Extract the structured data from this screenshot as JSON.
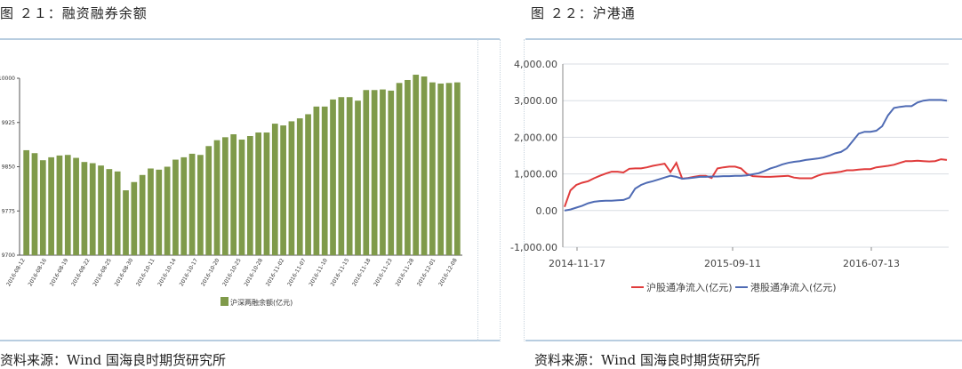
{
  "left_figure": {
    "title": "图 ２１：融资融券余额",
    "source": "资料来源：Wind 国海良时期货研究所"
  },
  "right_figure": {
    "title": "图 ２２：沪港通",
    "source": "资料来源：Wind 国海良时期货研究所"
  },
  "chart_data": [
    {
      "type": "bar",
      "title": "",
      "xlabel": "",
      "ylabel": "",
      "yticks": [
        "9700",
        "9775",
        "9850",
        "9925",
        "10000"
      ],
      "ylim": [
        9700,
        10000
      ],
      "color": "#7f9a4a",
      "legend": "沪深两融余额(亿元)",
      "legend_position": "bottom",
      "grid": false,
      "xtick_labels": [
        "2016-08-12",
        "2016-08-16",
        "2016-08-19",
        "2016-08-22",
        "2016-08-25",
        "2016-08-30",
        "2016-10-11",
        "2016-10-14",
        "2016-10-17",
        "2016-10-20",
        "2016-10-25",
        "2016-10-28",
        "2016-11-02",
        "2016-11-07",
        "2016-11-10",
        "2016-11-15",
        "2016-11-18",
        "2016-11-23",
        "2016-11-28",
        "2016-12-01",
        "2016-12-08"
      ],
      "values": [
        9878,
        9873,
        9861,
        9866,
        9869,
        9870,
        9865,
        9858,
        9856,
        9852,
        9846,
        9842,
        9810,
        9824,
        9836,
        9847,
        9845,
        9850,
        9862,
        9866,
        9872,
        9870,
        9885,
        9895,
        9900,
        9905,
        9896,
        9902,
        9908,
        9908,
        9923,
        9920,
        9927,
        9932,
        9939,
        9952,
        9952,
        9964,
        9968,
        9968,
        9962,
        9980,
        9980,
        9981,
        9979,
        9992,
        9997,
        10006,
        10003,
        9993,
        9991,
        9992,
        9993
      ]
    },
    {
      "type": "line",
      "title": "",
      "xlabel": "",
      "ylabel": "",
      "ylim": [
        -1000,
        4000
      ],
      "yticks": [
        "4,000.00",
        "3,000.00",
        "2,000.00",
        "1,000.00",
        "0.00",
        "-1,000.00"
      ],
      "xtick_labels": [
        "2014-11-17",
        "2015-09-11",
        "2016-07-13"
      ],
      "grid": true,
      "legend_position": "bottom",
      "series": [
        {
          "name": "沪股通净流入(亿元)",
          "color": "#e03c3c",
          "values": [
            100,
            550,
            700,
            760,
            800,
            880,
            950,
            1010,
            1060,
            1060,
            1040,
            1140,
            1150,
            1150,
            1180,
            1220,
            1250,
            1280,
            1050,
            1300,
            870,
            890,
            920,
            950,
            950,
            890,
            1150,
            1180,
            1200,
            1200,
            1150,
            1000,
            940,
            930,
            920,
            920,
            930,
            940,
            950,
            900,
            880,
            880,
            880,
            950,
            1000,
            1020,
            1040,
            1060,
            1100,
            1100,
            1120,
            1130,
            1130,
            1180,
            1200,
            1220,
            1250,
            1300,
            1350,
            1350,
            1360,
            1350,
            1340,
            1350,
            1400,
            1380
          ]
        },
        {
          "name": "港股通净流入(亿元)",
          "color": "#4f6bb4",
          "values": [
            0,
            30,
            80,
            130,
            200,
            240,
            260,
            270,
            270,
            280,
            290,
            350,
            600,
            700,
            760,
            800,
            850,
            900,
            950,
            920,
            870,
            880,
            900,
            920,
            920,
            930,
            930,
            940,
            940,
            950,
            950,
            960,
            990,
            1020,
            1080,
            1150,
            1200,
            1260,
            1300,
            1330,
            1350,
            1380,
            1400,
            1420,
            1450,
            1500,
            1560,
            1600,
            1700,
            1900,
            2100,
            2150,
            2150,
            2180,
            2300,
            2600,
            2800,
            2830,
            2850,
            2850,
            2950,
            3000,
            3020,
            3020,
            3020,
            3000
          ]
        }
      ]
    }
  ]
}
